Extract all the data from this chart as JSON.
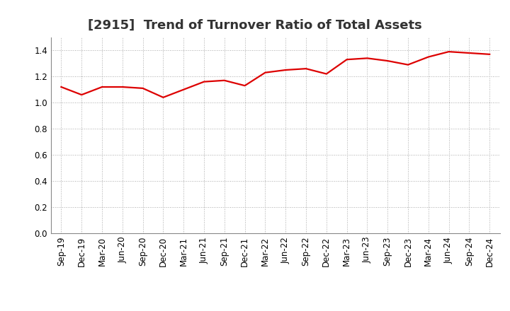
{
  "title": "[2915]  Trend of Turnover Ratio of Total Assets",
  "x_labels": [
    "Sep-19",
    "Dec-19",
    "Mar-20",
    "Jun-20",
    "Sep-20",
    "Dec-20",
    "Mar-21",
    "Jun-21",
    "Sep-21",
    "Dec-21",
    "Mar-22",
    "Jun-22",
    "Sep-22",
    "Dec-22",
    "Mar-23",
    "Jun-23",
    "Sep-23",
    "Dec-23",
    "Mar-24",
    "Jun-24",
    "Sep-24",
    "Dec-24"
  ],
  "y_values": [
    1.12,
    1.06,
    1.12,
    1.12,
    1.11,
    1.04,
    1.1,
    1.16,
    1.17,
    1.13,
    1.23,
    1.25,
    1.26,
    1.22,
    1.33,
    1.34,
    1.32,
    1.29,
    1.35,
    1.39,
    1.38,
    1.37
  ],
  "line_color": "#dd0000",
  "line_width": 1.6,
  "ylim": [
    0.0,
    1.5
  ],
  "yticks": [
    0.0,
    0.2,
    0.4,
    0.6,
    0.8,
    1.0,
    1.2,
    1.4
  ],
  "grid_color": "#aaaaaa",
  "background_color": "#ffffff",
  "title_fontsize": 13,
  "tick_fontsize": 8.5
}
